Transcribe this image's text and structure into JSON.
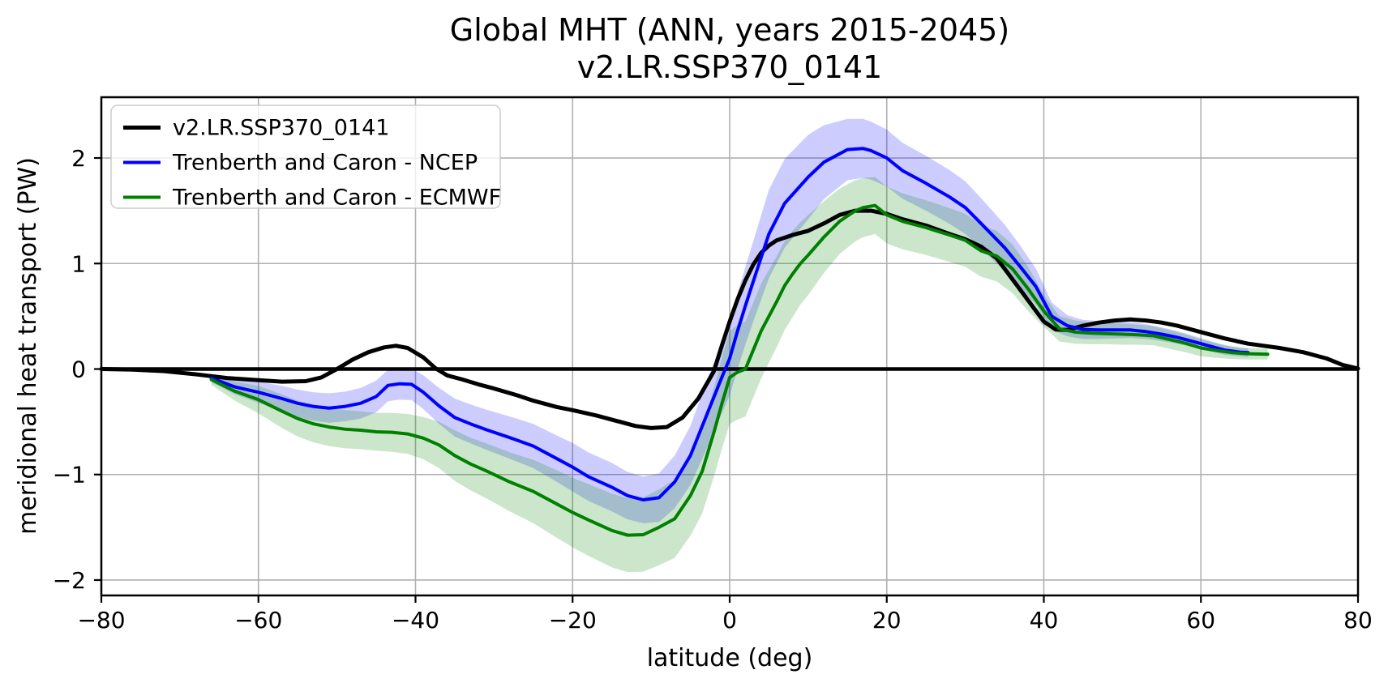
{
  "chart_data": {
    "type": "line",
    "title": {
      "line1": "Global MHT (ANN, years 2015-2045)",
      "line2": "v2.LR.SSP370_0141"
    },
    "xlabel": "latitude (deg)",
    "ylabel": "meridional heat transport (PW)",
    "xlim": [
      -80,
      80
    ],
    "ylim": [
      -2.146,
      2.576
    ],
    "xticks": [
      -80,
      -60,
      -40,
      -20,
      0,
      20,
      40,
      60,
      80
    ],
    "yticks": [
      -2,
      -1,
      0,
      1,
      2
    ],
    "grid": true,
    "grid_color": "#b0b0b0",
    "background": "#ffffff",
    "spine_color": "#000000",
    "zero_line": {
      "y": 0,
      "color": "#000000",
      "linewidth": 4.5
    },
    "legend": {
      "position": "upper left",
      "border_color": "#cccccc",
      "background": "rgba(255,255,255,0.8)"
    },
    "series": [
      {
        "name": "v2.LR.SSP370_0141",
        "color": "#000000",
        "linewidth": 5,
        "lats": [
          -80,
          -76,
          -72,
          -68,
          -64,
          -60,
          -57,
          -54,
          -52,
          -50,
          -48,
          -46,
          -44,
          -42.5,
          -41,
          -39,
          -37.5,
          -36,
          -34,
          -32,
          -30,
          -27,
          -25,
          -22,
          -20,
          -17,
          -14,
          -12,
          -10,
          -8,
          -6,
          -4,
          -2,
          -1,
          0,
          1,
          2,
          3,
          4,
          5,
          6,
          8,
          10,
          12,
          14,
          16,
          18,
          20,
          22,
          25,
          28,
          30,
          32,
          34,
          36,
          38,
          40,
          41.5,
          43,
          45,
          47,
          49,
          51,
          53,
          55,
          57,
          60,
          63,
          66,
          70,
          73,
          76,
          78,
          80
        ],
        "values": [
          0,
          -0.005,
          -0.02,
          -0.05,
          -0.085,
          -0.105,
          -0.12,
          -0.115,
          -0.08,
          0,
          0.09,
          0.16,
          0.205,
          0.22,
          0.2,
          0.11,
          0.01,
          -0.06,
          -0.1,
          -0.145,
          -0.185,
          -0.25,
          -0.3,
          -0.36,
          -0.39,
          -0.44,
          -0.5,
          -0.54,
          -0.56,
          -0.55,
          -0.46,
          -0.28,
          -0.02,
          0.22,
          0.45,
          0.66,
          0.84,
          0.99,
          1.1,
          1.17,
          1.22,
          1.27,
          1.31,
          1.38,
          1.46,
          1.5,
          1.5,
          1.47,
          1.42,
          1.36,
          1.28,
          1.23,
          1.16,
          1.05,
          0.85,
          0.65,
          0.45,
          0.375,
          0.37,
          0.41,
          0.44,
          0.46,
          0.47,
          0.46,
          0.44,
          0.41,
          0.35,
          0.29,
          0.24,
          0.2,
          0.16,
          0.1,
          0.04,
          0.005
        ]
      },
      {
        "name": "Trenberth and Caron - NCEP",
        "color": "#0000ff",
        "linewidth": 4,
        "band_alpha": 0.2,
        "lats": [
          -66,
          -63,
          -60,
          -57,
          -55,
          -53,
          -51,
          -49,
          -47,
          -45,
          -43.5,
          -42,
          -40.5,
          -39,
          -37,
          -35,
          -33,
          -31,
          -28,
          -25,
          -22,
          -20,
          -18,
          -15,
          -13,
          -11,
          -9,
          -7,
          -5,
          -3,
          -1,
          0,
          1,
          2,
          3,
          5,
          7,
          10,
          12,
          15,
          17,
          18,
          20,
          22,
          25,
          28,
          30,
          32,
          35,
          37,
          39,
          41,
          43,
          45,
          47,
          49,
          51,
          53,
          55,
          57,
          59,
          61,
          63,
          65,
          66
        ],
        "values": [
          -0.085,
          -0.17,
          -0.22,
          -0.28,
          -0.325,
          -0.355,
          -0.37,
          -0.355,
          -0.325,
          -0.26,
          -0.155,
          -0.14,
          -0.145,
          -0.22,
          -0.35,
          -0.46,
          -0.52,
          -0.575,
          -0.65,
          -0.73,
          -0.85,
          -0.93,
          -1.02,
          -1.12,
          -1.2,
          -1.24,
          -1.22,
          -1.07,
          -0.82,
          -0.45,
          -0.08,
          0.1,
          0.36,
          0.6,
          0.83,
          1.28,
          1.57,
          1.82,
          1.96,
          2.08,
          2.09,
          2.07,
          2.0,
          1.88,
          1.76,
          1.63,
          1.53,
          1.38,
          1.15,
          0.97,
          0.78,
          0.5,
          0.41,
          0.375,
          0.37,
          0.37,
          0.37,
          0.355,
          0.33,
          0.3,
          0.26,
          0.22,
          0.18,
          0.16,
          0.155
        ],
        "band_halfwidth": [
          0.04,
          0.07,
          0.1,
          0.12,
          0.13,
          0.135,
          0.14,
          0.14,
          0.145,
          0.15,
          0.15,
          0.15,
          0.15,
          0.16,
          0.17,
          0.18,
          0.185,
          0.19,
          0.2,
          0.21,
          0.22,
          0.23,
          0.23,
          0.23,
          0.225,
          0.22,
          0.23,
          0.25,
          0.28,
          0.32,
          0.34,
          0.35,
          0.36,
          0.37,
          0.38,
          0.42,
          0.42,
          0.4,
          0.35,
          0.29,
          0.28,
          0.275,
          0.27,
          0.265,
          0.26,
          0.255,
          0.25,
          0.24,
          0.22,
          0.2,
          0.17,
          0.13,
          0.1,
          0.09,
          0.085,
          0.08,
          0.075,
          0.07,
          0.065,
          0.06,
          0.055,
          0.05,
          0.045,
          0.04,
          0.04
        ]
      },
      {
        "name": "Trenberth and Caron - ECMWF",
        "color": "#008000",
        "linewidth": 4,
        "band_alpha": 0.2,
        "lats": [
          -66,
          -63,
          -60,
          -57,
          -55,
          -53,
          -51,
          -49,
          -47,
          -45,
          -43,
          -41,
          -39,
          -37,
          -35,
          -33,
          -31,
          -28,
          -25,
          -22,
          -20,
          -18,
          -15,
          -13,
          -11,
          -9,
          -7,
          -5,
          -3.5,
          -2,
          -1,
          0,
          1,
          2,
          3,
          4,
          5,
          6,
          7,
          8,
          9,
          10,
          12,
          14,
          16,
          17,
          18.5,
          20,
          22,
          25,
          28,
          30,
          32,
          34,
          36,
          38,
          40,
          42,
          44,
          46,
          48,
          50,
          52,
          54,
          56,
          58,
          60,
          62,
          64,
          66,
          68.5
        ],
        "values": [
          -0.1,
          -0.21,
          -0.29,
          -0.4,
          -0.47,
          -0.52,
          -0.55,
          -0.57,
          -0.58,
          -0.595,
          -0.6,
          -0.615,
          -0.655,
          -0.72,
          -0.82,
          -0.9,
          -0.965,
          -1.07,
          -1.16,
          -1.28,
          -1.36,
          -1.43,
          -1.53,
          -1.575,
          -1.57,
          -1.5,
          -1.42,
          -1.2,
          -0.97,
          -0.6,
          -0.33,
          -0.08,
          -0.03,
          0,
          0.18,
          0.36,
          0.5,
          0.64,
          0.79,
          0.9,
          1.0,
          1.08,
          1.25,
          1.4,
          1.5,
          1.53,
          1.55,
          1.46,
          1.4,
          1.34,
          1.27,
          1.22,
          1.12,
          1.07,
          0.95,
          0.76,
          0.55,
          0.38,
          0.35,
          0.34,
          0.335,
          0.33,
          0.325,
          0.315,
          0.28,
          0.245,
          0.2,
          0.175,
          0.155,
          0.145,
          0.14
        ],
        "band_halfwidth": [
          0.05,
          0.09,
          0.13,
          0.16,
          0.17,
          0.175,
          0.18,
          0.18,
          0.18,
          0.18,
          0.185,
          0.19,
          0.2,
          0.22,
          0.24,
          0.25,
          0.26,
          0.28,
          0.3,
          0.32,
          0.33,
          0.34,
          0.35,
          0.35,
          0.35,
          0.36,
          0.37,
          0.38,
          0.4,
          0.42,
          0.43,
          0.44,
          0.45,
          0.45,
          0.45,
          0.45,
          0.44,
          0.43,
          0.42,
          0.41,
          0.39,
          0.38,
          0.34,
          0.31,
          0.29,
          0.28,
          0.27,
          0.27,
          0.265,
          0.26,
          0.255,
          0.25,
          0.245,
          0.24,
          0.23,
          0.21,
          0.15,
          0.12,
          0.11,
          0.105,
          0.1,
          0.1,
          0.095,
          0.09,
          0.088,
          0.085,
          0.08,
          0.07,
          0.06,
          0.055,
          0.05
        ]
      }
    ]
  }
}
